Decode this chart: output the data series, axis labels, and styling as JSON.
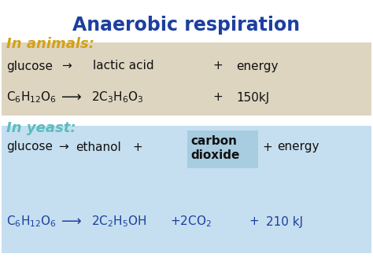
{
  "title": "Anaerobic respiration",
  "title_color": "#1c3fa0",
  "title_fontsize": 17,
  "bg_color": "#ffffff",
  "animals_label": "In animals:",
  "animals_label_color": "#d4a017",
  "animals_bg": "#ddd5c0",
  "yeast_label": "In yeast:",
  "yeast_label_color": "#5bbcbf",
  "yeast_bg": "#c5dff0",
  "carbon_dioxide_bg": "#a8cce0",
  "eq_color": "#111111",
  "yeast_chem_color": "#1c3fa0"
}
